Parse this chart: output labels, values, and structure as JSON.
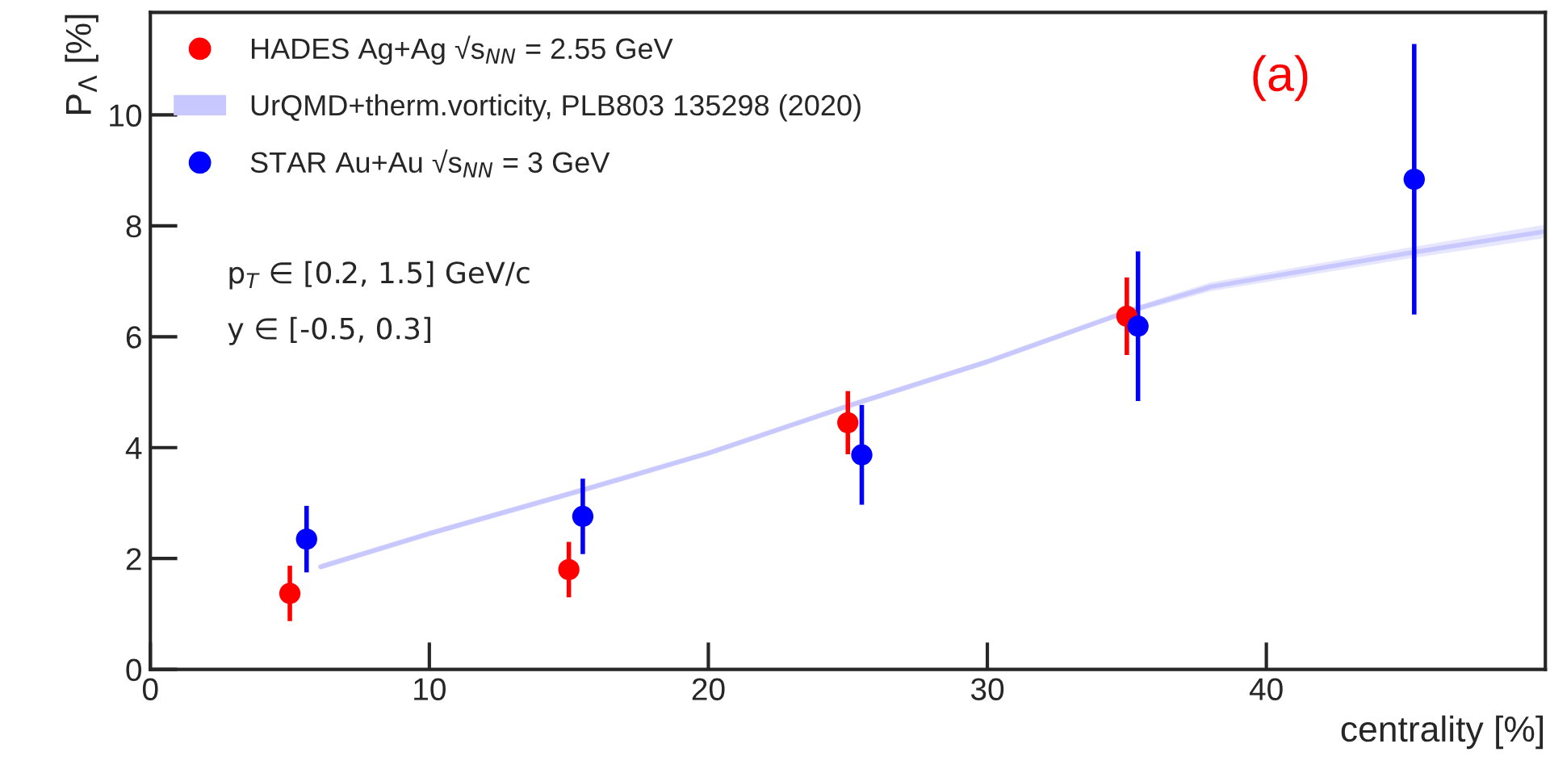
{
  "chart_data": {
    "type": "scatter",
    "xlabel": "centrality [%]",
    "ylabel": "P$_{Λ}$ [%]",
    "xlim": [
      0,
      50
    ],
    "ylim": [
      0,
      11.85
    ],
    "xticks": [
      0,
      10,
      20,
      30,
      40
    ],
    "yticks": [
      0,
      2,
      4,
      6,
      8,
      10
    ],
    "grid": false,
    "legend": "top left",
    "marker": "circle",
    "series": [
      {
        "name": "HADES Ag+Ag √s$_{NN}$ = 2.55 GeV",
        "type": "scatter",
        "color": "#ff0000",
        "x": [
          5,
          15,
          25,
          35
        ],
        "values": [
          1.37,
          1.8,
          4.45,
          6.37
        ],
        "errors": [
          0.5,
          0.5,
          0.57,
          0.7
        ]
      },
      {
        "name": "UrQMD+therm.vorticity, PLB803 135298 (2020)",
        "type": "line",
        "marker": "none",
        "color": "#c8c8ff",
        "x": [
          6.1,
          10,
          15.6,
          20,
          25,
          30,
          35,
          38,
          45,
          50
        ],
        "values": [
          1.85,
          2.45,
          3.25,
          3.9,
          4.75,
          5.55,
          6.45,
          6.9,
          7.5,
          7.9
        ],
        "lower": [
          1.8,
          2.4,
          3.2,
          3.85,
          4.7,
          5.5,
          6.4,
          6.82,
          7.4,
          7.78
        ],
        "upper": [
          1.9,
          2.5,
          3.3,
          3.95,
          4.8,
          5.6,
          6.5,
          6.98,
          7.6,
          8.02
        ]
      },
      {
        "name": "STAR Au+Au √s$_{NN}$ = 3 GeV",
        "type": "scatter",
        "color": "#0000ff",
        "x": [
          5.6,
          15.5,
          25.5,
          35.4,
          45.3
        ],
        "values": [
          2.35,
          2.76,
          3.87,
          6.19,
          8.84
        ],
        "errors": [
          0.6,
          0.68,
          0.9,
          1.35,
          2.44
        ]
      }
    ],
    "annotations": [
      "p$_{T}$ ∈ [0.2, 1.5] GeV/c",
      "y ∈ [-0.5, 0.3]",
      "(a)"
    ]
  }
}
